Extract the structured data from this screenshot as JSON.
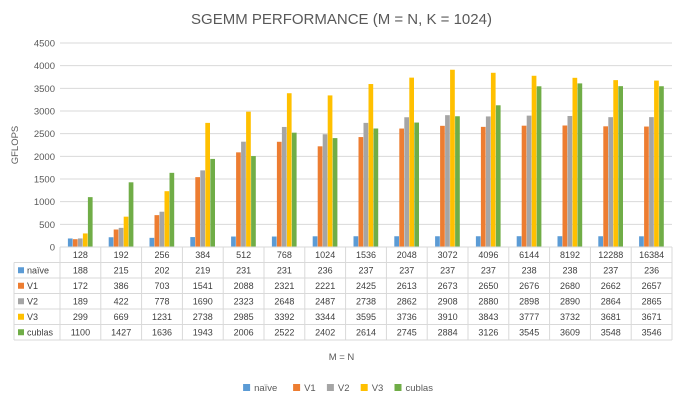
{
  "chart_data": {
    "type": "bar",
    "title": "SGEMM PERFORMANCE (M = N, K = 1024)",
    "xlabel": "M = N",
    "ylabel": "GFLOPS",
    "ylim": [
      0,
      4500
    ],
    "yticks": [
      0,
      500,
      1000,
      1500,
      2000,
      2500,
      3000,
      3500,
      4000,
      4500
    ],
    "grid": true,
    "legend_position": "bottom",
    "data_table": true,
    "categories": [
      "128",
      "192",
      "256",
      "384",
      "512",
      "768",
      "1024",
      "1536",
      "2048",
      "3072",
      "4096",
      "6144",
      "8192",
      "12288",
      "16384"
    ],
    "series": [
      {
        "name": "naïve",
        "color": "#5b9bd5",
        "values": [
          188,
          215,
          202,
          219,
          231,
          231,
          236,
          237,
          237,
          237,
          237,
          238,
          238,
          237,
          236
        ]
      },
      {
        "name": "V1",
        "color": "#ed7d31",
        "values": [
          172,
          386,
          703,
          1541,
          2088,
          2321,
          2221,
          2425,
          2613,
          2673,
          2650,
          2676,
          2680,
          2662,
          2657
        ]
      },
      {
        "name": "V2",
        "color": "#a5a5a5",
        "values": [
          189,
          422,
          778,
          1690,
          2323,
          2648,
          2487,
          2738,
          2862,
          2908,
          2880,
          2898,
          2890,
          2864,
          2865
        ]
      },
      {
        "name": "V3",
        "color": "#ffc000",
        "values": [
          299,
          669,
          1231,
          2738,
          2985,
          3392,
          3344,
          3595,
          3736,
          3910,
          3843,
          3777,
          3732,
          3681,
          3671
        ]
      },
      {
        "name": "cublas",
        "color": "#70ad47",
        "values": [
          1100,
          1427,
          1636,
          1943,
          2006,
          2522,
          2402,
          2614,
          2745,
          2884,
          3126,
          3545,
          3609,
          3548,
          3546
        ]
      }
    ]
  }
}
